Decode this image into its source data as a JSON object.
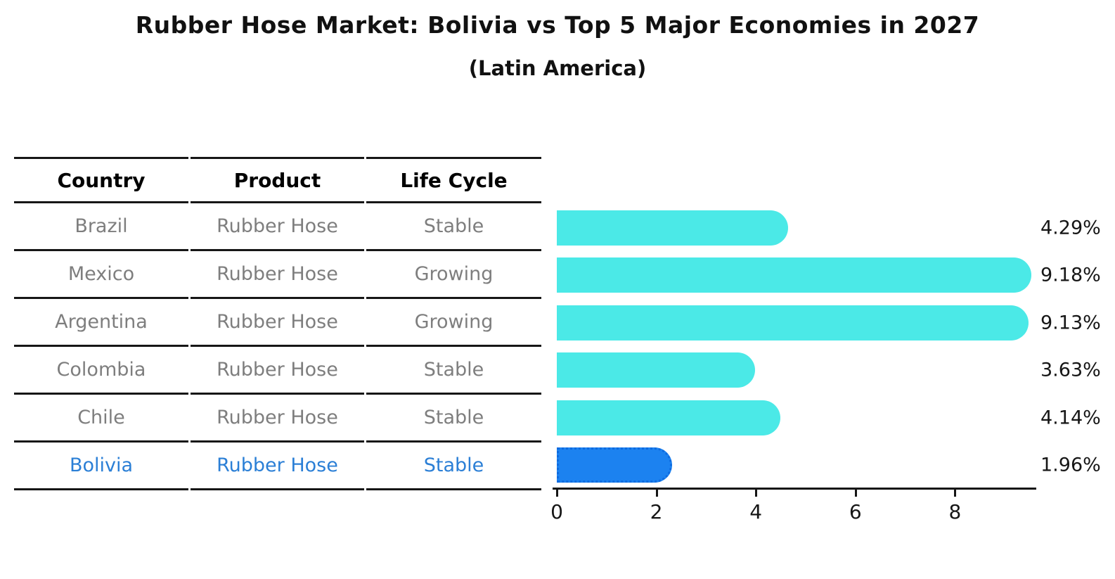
{
  "title": "Rubber Hose Market: Bolivia vs Top 5 Major Economies in 2027",
  "subtitle": "(Latin America)",
  "table": {
    "headers": [
      "Country",
      "Product",
      "Life Cycle"
    ],
    "rows": [
      {
        "country": "Brazil",
        "product": "Rubber Hose",
        "life_cycle": "Stable",
        "highlight": false
      },
      {
        "country": "Mexico",
        "product": "Rubber Hose",
        "life_cycle": "Growing",
        "highlight": false
      },
      {
        "country": "Argentina",
        "product": "Rubber Hose",
        "life_cycle": "Growing",
        "highlight": false
      },
      {
        "country": "Colombia",
        "product": "Rubber Hose",
        "life_cycle": "Stable",
        "highlight": false
      },
      {
        "country": "Chile",
        "product": "Rubber Hose",
        "life_cycle": "Stable",
        "highlight": true
      }
    ],
    "highlight_row": {
      "country": "Bolivia",
      "product": "Rubber Hose",
      "life_cycle": "Stable"
    }
  },
  "chart_data": {
    "type": "bar",
    "orientation": "horizontal",
    "categories": [
      "Brazil",
      "Mexico",
      "Argentina",
      "Colombia",
      "Chile",
      "Bolivia"
    ],
    "values": [
      4.29,
      9.18,
      9.13,
      3.63,
      4.14,
      1.96
    ],
    "value_labels": [
      "4.29%",
      "9.18%",
      "9.13%",
      "3.63%",
      "4.14%",
      "1.96%"
    ],
    "x_ticks": [
      0,
      2,
      4,
      6,
      8
    ],
    "xlim": [
      0,
      9.63
    ],
    "grid": false,
    "legend": "none",
    "bar_color": "#4be9e7",
    "highlight_index": 5,
    "highlight_color": "#1c82f0",
    "highlight_edge_color": "#0e6be0",
    "axis_color": "#161616",
    "label_color": "#161616"
  },
  "colors": {
    "background": "#ffffff",
    "title_text": "#111111",
    "table_line": "#161616",
    "table_header_text": "#000000",
    "table_cell_text": "#7e7e7e",
    "highlight_text": "#2b7fd6"
  }
}
